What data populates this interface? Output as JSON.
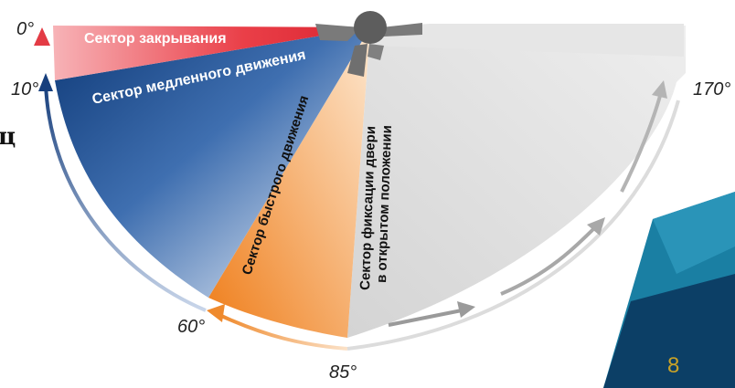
{
  "angles": {
    "a0": "0°",
    "a10": "10°",
    "a60": "60°",
    "a85": "85°",
    "a170": "170°"
  },
  "sectors": {
    "closing": "Сектор закрывания",
    "slow": "Сектор медленного движения",
    "fast": "Сектор быстрого движения",
    "hold_line1": "Сектор фиксации двери",
    "hold_line2": "в открытом положении"
  },
  "edge_char": "ц",
  "page_number": "8",
  "colors": {
    "closing": "#e8353f",
    "slow": "#1f4e8c",
    "fast": "#f08a2a",
    "hold": "#cfcfcf",
    "corner_teal": "#1a7fa3",
    "corner_dark": "#0c3f66"
  }
}
